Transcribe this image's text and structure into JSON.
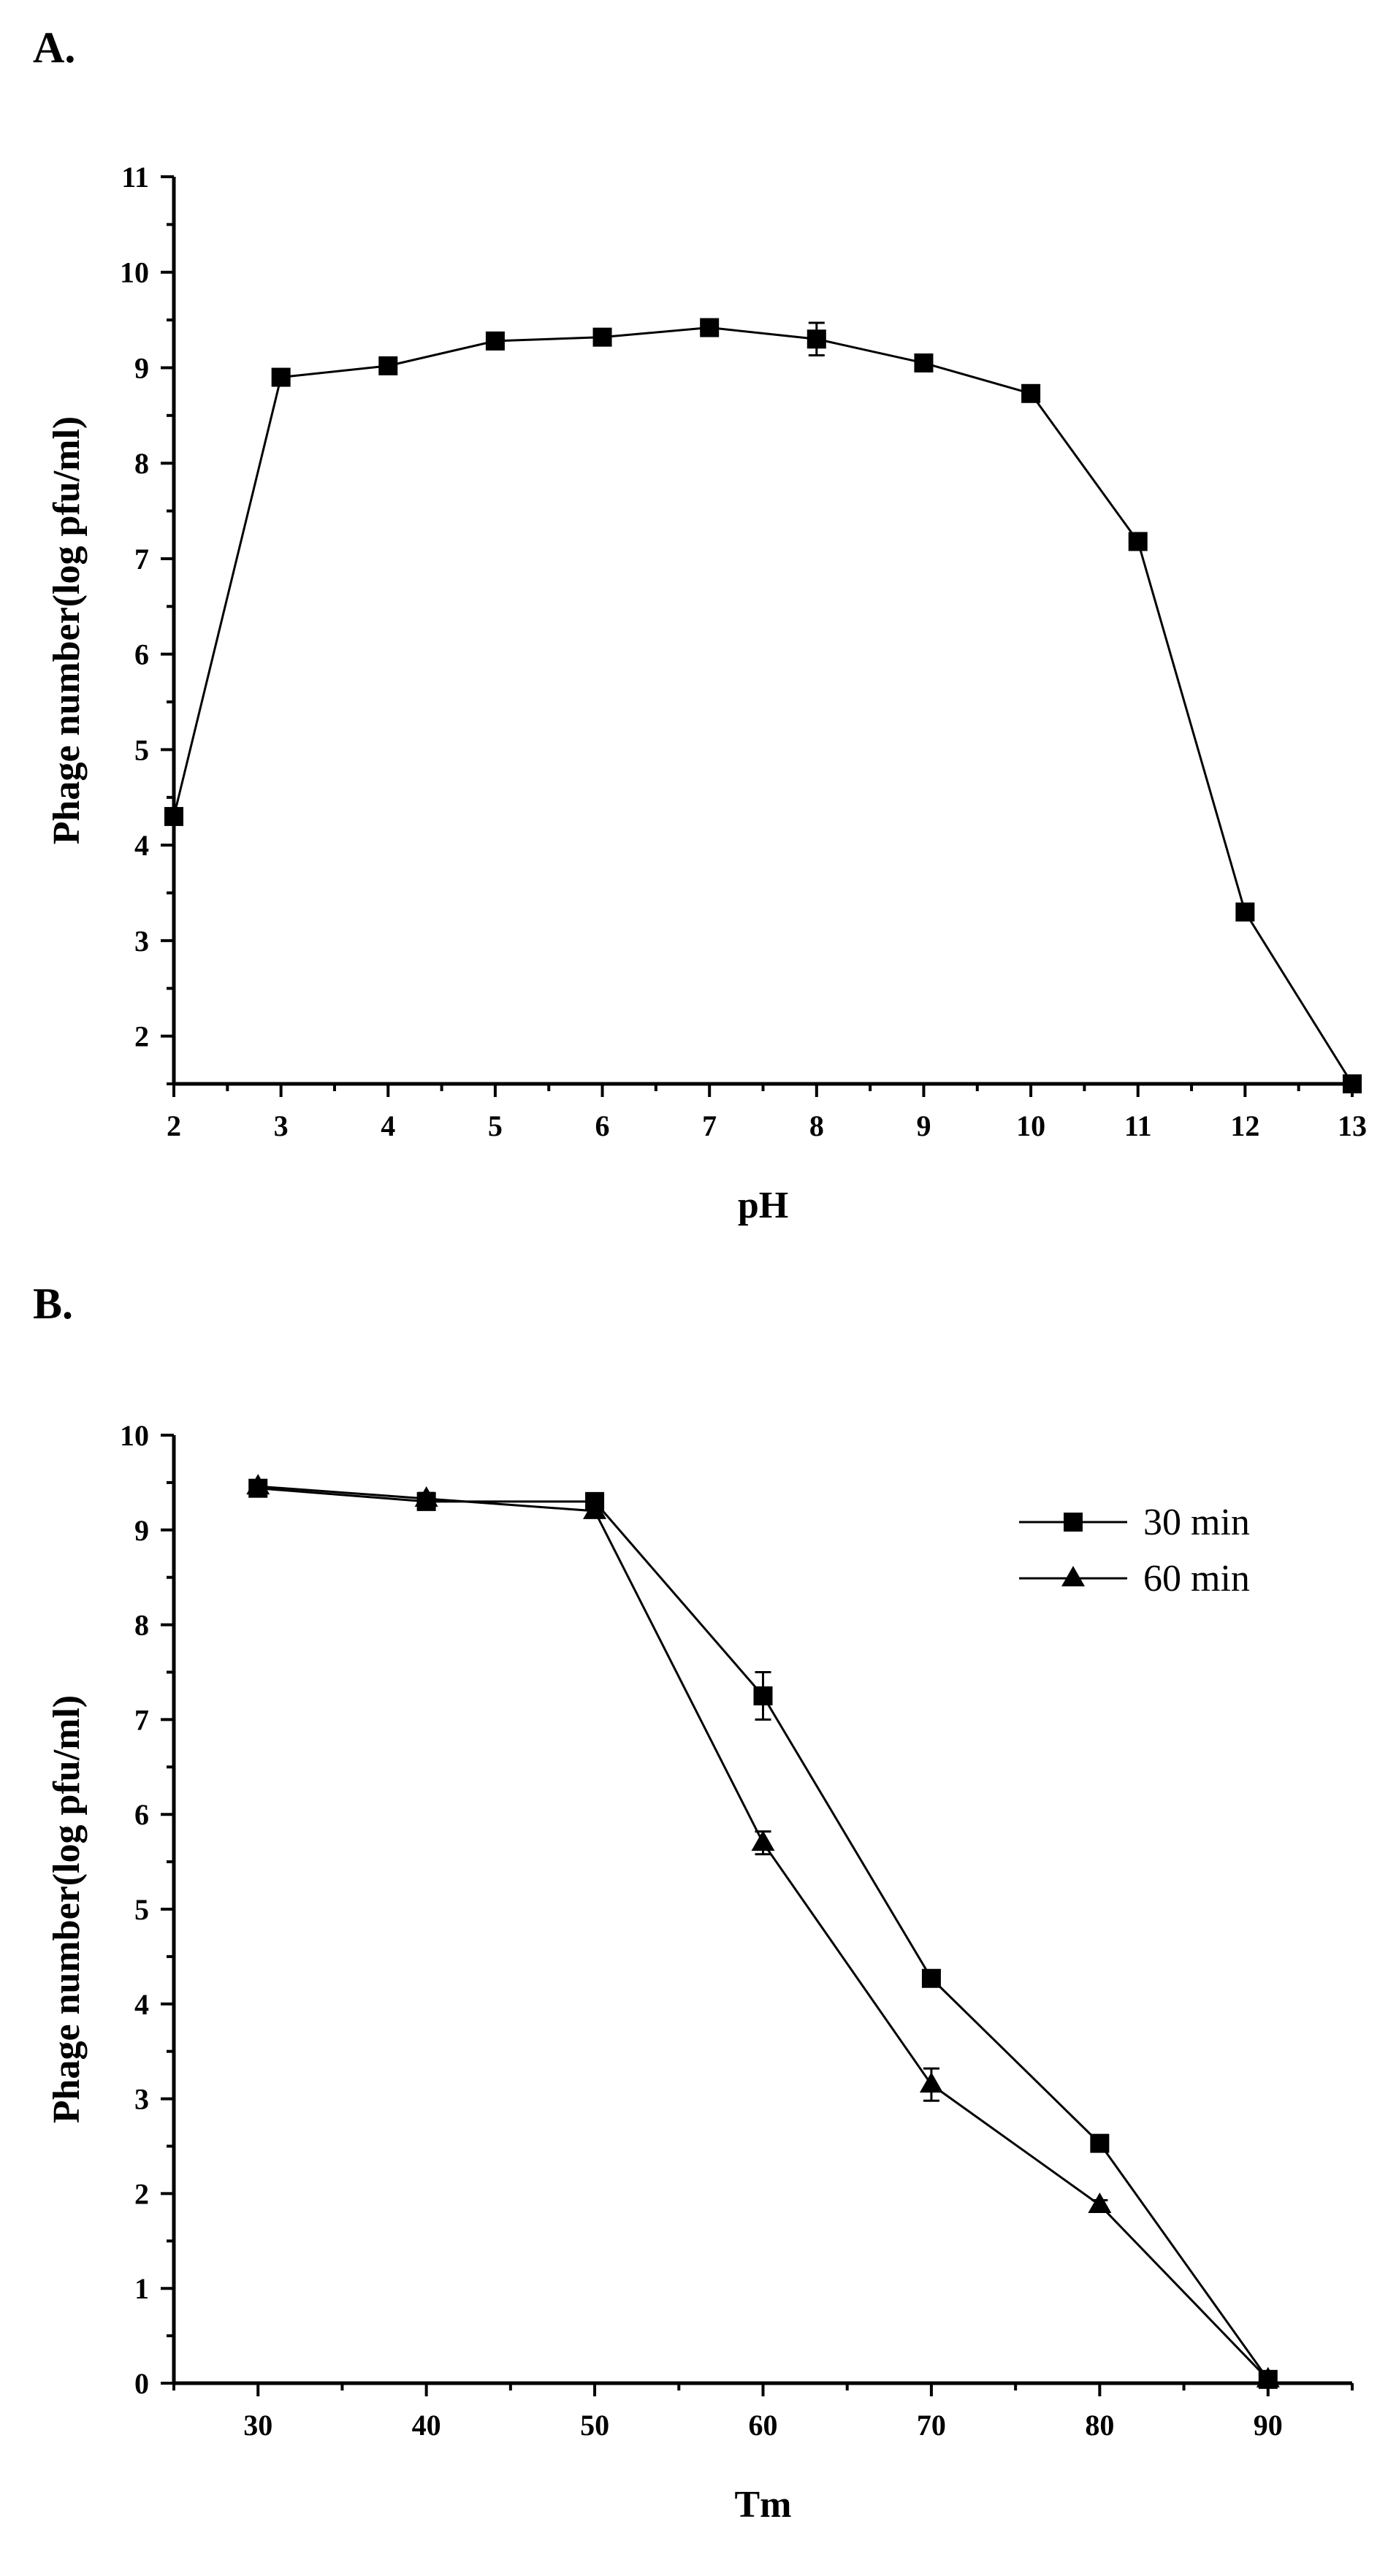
{
  "chart_data": [
    {
      "panel_label": "A.",
      "type": "line",
      "xlabel": "pH",
      "ylabel": "Phage number(log pfu/ml)",
      "xlim": [
        2,
        13
      ],
      "ylim": [
        1.5,
        11
      ],
      "xticks": [
        2,
        3,
        4,
        5,
        6,
        7,
        8,
        9,
        10,
        11,
        12,
        13
      ],
      "yticks": [
        2,
        3,
        4,
        5,
        6,
        7,
        8,
        9,
        10,
        11
      ],
      "grid": false,
      "legend": null,
      "series": [
        {
          "name": "pH",
          "marker": "square",
          "x": [
            2,
            3,
            4,
            5,
            6,
            7,
            8,
            9,
            10,
            11,
            12,
            13
          ],
          "values": [
            4.3,
            8.9,
            9.02,
            9.28,
            9.32,
            9.42,
            9.3,
            9.05,
            8.73,
            7.18,
            3.3,
            1.5
          ],
          "errors": [
            0.05,
            0.05,
            0.05,
            0.05,
            0.05,
            0.05,
            0.17,
            0.05,
            0.05,
            0.05,
            0.05,
            0
          ]
        }
      ]
    },
    {
      "panel_label": "B.",
      "type": "line",
      "xlabel": "Tm",
      "ylabel": "Phage number(log pfu/ml)",
      "xlim": [
        25,
        95
      ],
      "ylim": [
        0,
        10
      ],
      "xticks": [
        30,
        40,
        50,
        60,
        70,
        80,
        90
      ],
      "yticks": [
        0,
        1,
        2,
        3,
        4,
        5,
        6,
        7,
        8,
        9,
        10
      ],
      "grid": false,
      "legend": "top-right",
      "series": [
        {
          "name": "30 min",
          "marker": "square",
          "x": [
            30,
            40,
            50,
            60,
            70,
            80,
            90
          ],
          "values": [
            9.44,
            9.3,
            9.3,
            7.25,
            4.27,
            2.53,
            0.04
          ],
          "errors": [
            0.06,
            0.06,
            0.06,
            0.25,
            0.05,
            0.06,
            0.03
          ]
        },
        {
          "name": "60 min",
          "marker": "triangle",
          "x": [
            30,
            40,
            50,
            60,
            70,
            80,
            90
          ],
          "values": [
            9.46,
            9.33,
            9.2,
            5.7,
            3.15,
            1.88,
            0.04
          ],
          "errors": [
            0.06,
            0.06,
            0.06,
            0.12,
            0.17,
            0.05,
            0.03
          ]
        }
      ]
    }
  ]
}
